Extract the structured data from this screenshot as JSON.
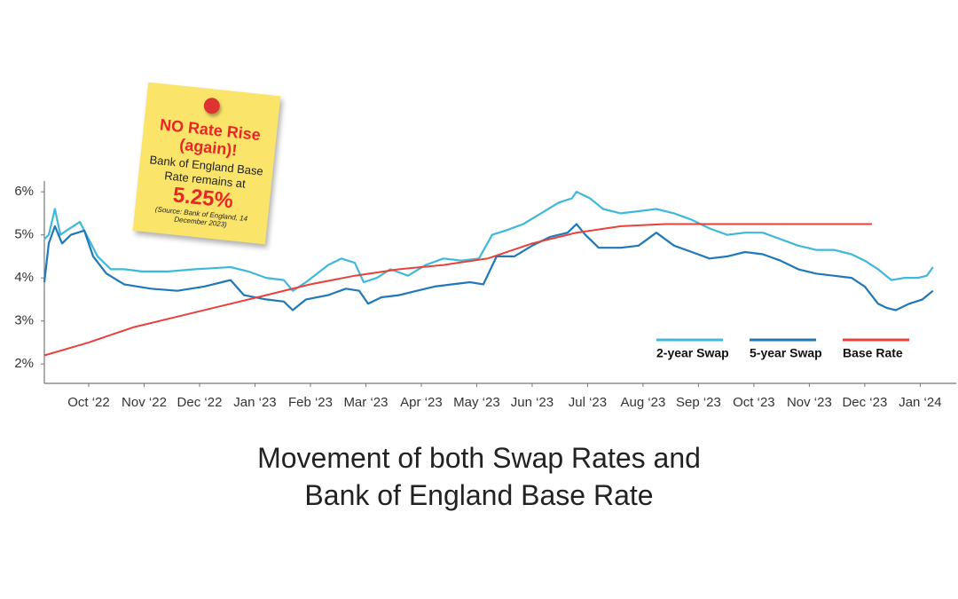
{
  "chart_data": {
    "type": "line",
    "title": "Movement of both Swap Rates and Bank of England Base Rate",
    "annotation": {
      "headline": "NO Rate Rise (again)!",
      "body": "Bank of England Base Rate remains at",
      "highlight": "5.25%",
      "source": "(Source: Bank of England, 14 December 2023)"
    },
    "xlim": [
      -0.8,
      15.65
    ],
    "xticks": [
      {
        "value": 0,
        "label": "Oct ‘22"
      },
      {
        "value": 1,
        "label": "Nov ‘22"
      },
      {
        "value": 2,
        "label": "Dec ‘22"
      },
      {
        "value": 3,
        "label": "Jan ‘23"
      },
      {
        "value": 4,
        "label": "Feb ‘23"
      },
      {
        "value": 5,
        "label": "Mar ‘23"
      },
      {
        "value": 6,
        "label": "Apr ‘23"
      },
      {
        "value": 7,
        "label": "May ‘23"
      },
      {
        "value": 8,
        "label": "Jun ‘23"
      },
      {
        "value": 9,
        "label": "Jul ‘23"
      },
      {
        "value": 10,
        "label": "Aug ‘23"
      },
      {
        "value": 11,
        "label": "Sep ‘23"
      },
      {
        "value": 12,
        "label": "Oct ‘23"
      },
      {
        "value": 13,
        "label": "Nov ‘23"
      },
      {
        "value": 14,
        "label": "Dec ‘23"
      },
      {
        "value": 15,
        "label": "Jan ‘24"
      }
    ],
    "ylim": [
      1.55,
      6.25
    ],
    "yticks": [
      {
        "value": 2,
        "label": "2%"
      },
      {
        "value": 3,
        "label": "3%"
      },
      {
        "value": 4,
        "label": "4%"
      },
      {
        "value": 5,
        "label": "5%"
      },
      {
        "value": 6,
        "label": "6%"
      }
    ],
    "legend": "lower right",
    "series": [
      {
        "name": "2-year Swap",
        "color": "#3fb8db",
        "x": [
          -0.8,
          -0.72,
          -0.61,
          -0.51,
          -0.4,
          -0.16,
          0,
          0.16,
          0.4,
          0.64,
          0.96,
          1.44,
          1.92,
          2.56,
          2.88,
          3.2,
          3.52,
          3.68,
          3.92,
          4.32,
          4.56,
          4.8,
          4.96,
          5.2,
          5.44,
          5.76,
          6.08,
          6.4,
          6.72,
          7.04,
          7.28,
          7.52,
          7.84,
          8.16,
          8.48,
          8.72,
          8.8,
          9.04,
          9.28,
          9.6,
          9.92,
          10.24,
          10.56,
          10.88,
          11.2,
          11.52,
          11.84,
          12.16,
          12.48,
          12.8,
          13.12,
          13.44,
          13.76,
          14.0,
          14.24,
          14.48,
          14.72,
          14.96,
          15.12,
          15.23
        ],
        "values": [
          4.9,
          5.0,
          5.6,
          5.0,
          5.1,
          5.3,
          4.9,
          4.5,
          4.2,
          4.2,
          4.15,
          4.15,
          4.2,
          4.25,
          4.15,
          4.0,
          3.95,
          3.7,
          3.9,
          4.3,
          4.45,
          4.35,
          3.9,
          4.0,
          4.2,
          4.05,
          4.3,
          4.45,
          4.4,
          4.45,
          5.0,
          5.1,
          5.25,
          5.5,
          5.75,
          5.85,
          6.0,
          5.85,
          5.6,
          5.5,
          5.55,
          5.6,
          5.5,
          5.35,
          5.15,
          5.0,
          5.05,
          5.05,
          4.9,
          4.75,
          4.65,
          4.65,
          4.55,
          4.4,
          4.2,
          3.95,
          4.0,
          4.0,
          4.05,
          4.25
        ]
      },
      {
        "name": "5-year Swap",
        "color": "#1f78b8",
        "x": [
          -0.8,
          -0.72,
          -0.61,
          -0.48,
          -0.32,
          -0.08,
          0.08,
          0.32,
          0.64,
          1.12,
          1.6,
          2.08,
          2.56,
          2.8,
          3.2,
          3.52,
          3.68,
          3.92,
          4.32,
          4.64,
          4.88,
          5.04,
          5.28,
          5.6,
          5.92,
          6.24,
          6.56,
          6.88,
          7.12,
          7.36,
          7.68,
          8.0,
          8.32,
          8.64,
          8.8,
          8.96,
          9.2,
          9.6,
          9.92,
          10.24,
          10.56,
          10.88,
          11.2,
          11.52,
          11.84,
          12.16,
          12.48,
          12.8,
          13.12,
          13.44,
          13.76,
          14.0,
          14.24,
          14.4,
          14.56,
          14.8,
          15.04,
          15.23
        ],
        "values": [
          3.9,
          4.8,
          5.2,
          4.8,
          5.0,
          5.1,
          4.5,
          4.1,
          3.85,
          3.75,
          3.7,
          3.8,
          3.95,
          3.6,
          3.5,
          3.45,
          3.25,
          3.5,
          3.6,
          3.75,
          3.7,
          3.4,
          3.55,
          3.6,
          3.7,
          3.8,
          3.85,
          3.9,
          3.85,
          4.5,
          4.5,
          4.75,
          4.95,
          5.05,
          5.25,
          5.0,
          4.7,
          4.7,
          4.75,
          5.05,
          4.75,
          4.6,
          4.45,
          4.5,
          4.6,
          4.55,
          4.4,
          4.2,
          4.1,
          4.05,
          4.0,
          3.8,
          3.4,
          3.3,
          3.25,
          3.4,
          3.5,
          3.7
        ]
      },
      {
        "name": "Base Rate",
        "color": "#e8403a",
        "x": [
          -0.8,
          0,
          0.8,
          1.6,
          2.4,
          3.2,
          4.0,
          4.8,
          5.6,
          6.4,
          7.2,
          8.0,
          8.8,
          9.6,
          10.4,
          11.2,
          12.8,
          14.13
        ],
        "values": [
          2.2,
          2.5,
          2.85,
          3.1,
          3.35,
          3.6,
          3.85,
          4.05,
          4.2,
          4.3,
          4.45,
          4.8,
          5.05,
          5.2,
          5.25,
          5.25,
          5.25,
          5.25
        ]
      }
    ]
  }
}
